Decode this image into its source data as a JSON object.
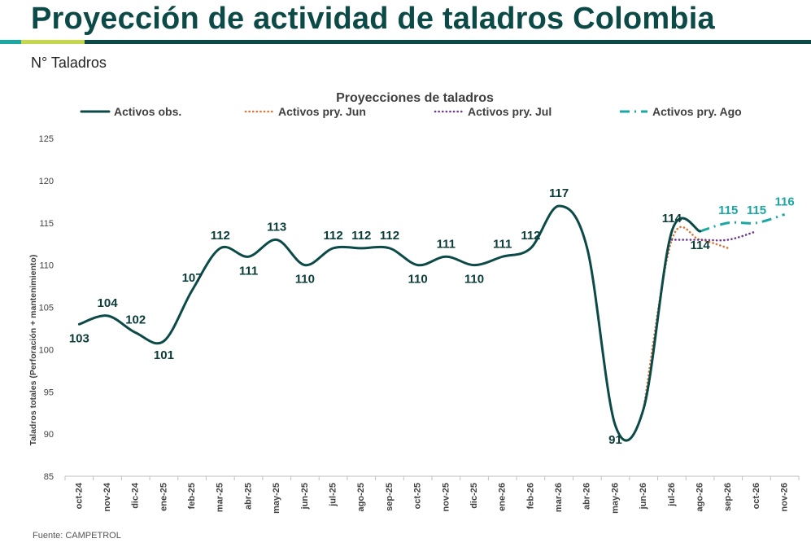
{
  "page": {
    "title": "Proyección de actividad de taladros Colombia",
    "subtitle": "N° Taladros",
    "source": "Fuente: CAMPETROL",
    "colors": {
      "title": "#0b4a47",
      "rule_teal": "#1aa8a5",
      "rule_lime": "#c5d84a",
      "rule_dark": "#0b4a47"
    }
  },
  "chart_data": {
    "type": "line",
    "title": "Proyecciones de taladros",
    "ylabel": "Taladros totales  (Perforación + mantenimiento)",
    "xlabel": "",
    "ylim": [
      85,
      125
    ],
    "yticks": [
      85,
      90,
      95,
      100,
      105,
      110,
      115,
      120,
      125
    ],
    "categories": [
      "oct-24",
      "nov-24",
      "dic-24",
      "ene-25",
      "feb-25",
      "mar-25",
      "abr-25",
      "may-25",
      "jun-25",
      "jul-25",
      "ago-25",
      "sep-25",
      "oct-25",
      "nov-25",
      "dic-25",
      "ene-26",
      "feb-26",
      "mar-26",
      "abr-26",
      "may-26",
      "jun-26",
      "jul-26",
      "ago-26",
      "sep-26",
      "oct-26",
      "nov-26"
    ],
    "legend_position": "top",
    "grid": false,
    "series": [
      {
        "name": "Activos obs.",
        "style": "solid",
        "color": "#0b4a47",
        "values": [
          103,
          104,
          102,
          101,
          107,
          112,
          111,
          113,
          110,
          112,
          112,
          112,
          110,
          111,
          110,
          111,
          112,
          117,
          112,
          91,
          93,
          114,
          114,
          null,
          null,
          null
        ],
        "labels": [
          "103",
          "104",
          "102",
          "101",
          "107",
          "112",
          "111",
          "113",
          "110",
          "112",
          "112",
          "112",
          "110",
          "111",
          "110",
          "111",
          "112",
          "117",
          "",
          "91",
          "",
          "114",
          "114",
          "",
          "",
          ""
        ]
      },
      {
        "name": "Activos pry. Jun",
        "style": "dotted",
        "color": "#d9763a",
        "values": [
          null,
          null,
          null,
          null,
          null,
          null,
          null,
          null,
          null,
          null,
          null,
          null,
          null,
          null,
          null,
          null,
          null,
          null,
          null,
          null,
          93,
          113,
          113,
          112,
          null,
          null
        ]
      },
      {
        "name": "Activos pry. Jul",
        "style": "dotted",
        "color": "#6e3a8c",
        "values": [
          null,
          null,
          null,
          null,
          null,
          null,
          null,
          null,
          null,
          null,
          null,
          null,
          null,
          null,
          null,
          null,
          null,
          null,
          null,
          null,
          null,
          113,
          113,
          113,
          114,
          null
        ]
      },
      {
        "name": "Activos pry. Ago",
        "style": "dashdot",
        "color": "#1aa8a5",
        "values": [
          null,
          null,
          null,
          null,
          null,
          null,
          null,
          null,
          null,
          null,
          null,
          null,
          null,
          null,
          null,
          null,
          null,
          null,
          null,
          null,
          null,
          null,
          114,
          115,
          115,
          116
        ],
        "labels": [
          "",
          "",
          "",
          "",
          "",
          "",
          "",
          "",
          "",
          "",
          "",
          "",
          "",
          "",
          "",
          "",
          "",
          "",
          "",
          "",
          "",
          "",
          "",
          "115",
          "115",
          "116"
        ]
      }
    ]
  }
}
